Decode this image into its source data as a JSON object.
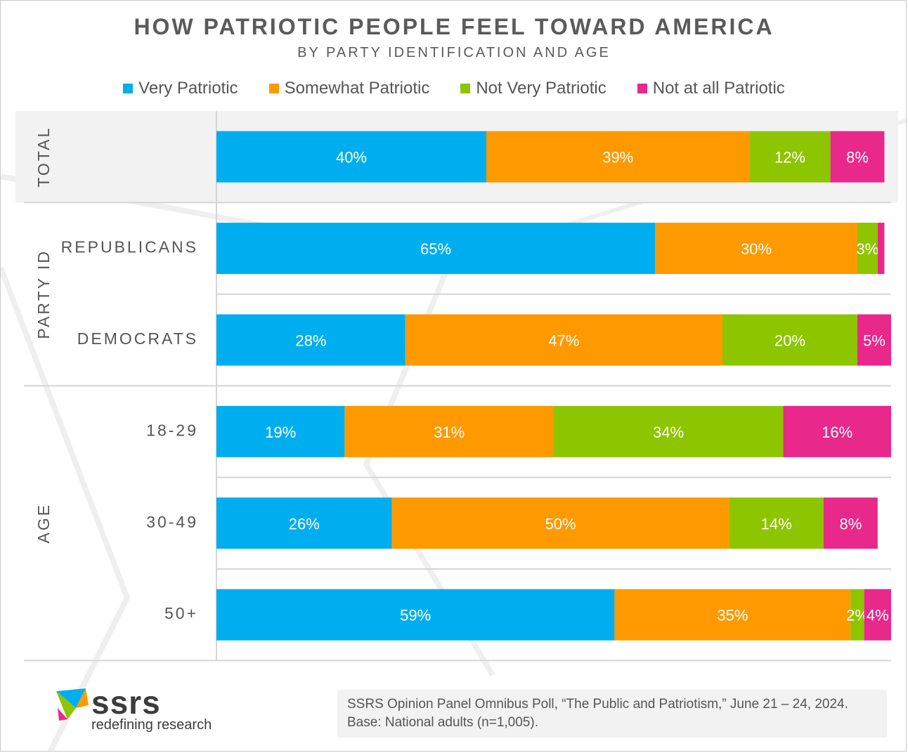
{
  "chart_data": {
    "type": "bar",
    "orientation": "horizontal",
    "stacked": true,
    "title": "HOW PATRIOTIC PEOPLE FEEL TOWARD AMERICA",
    "subtitle": "BY PARTY IDENTIFICATION AND AGE",
    "legend_placement": "top",
    "groups": [
      {
        "label": "TOTAL",
        "categories": [
          ""
        ]
      },
      {
        "label": "PARTY ID",
        "categories": [
          "REPUBLICANS",
          "DEMOCRATS"
        ]
      },
      {
        "label": "AGE",
        "categories": [
          "18-29",
          "30-49",
          "50+"
        ]
      }
    ],
    "categories": [
      "",
      "REPUBLICANS",
      "DEMOCRATS",
      "18-29",
      "30-49",
      "50+"
    ],
    "series": [
      {
        "name": "Very Patriotic",
        "color": "#00AEEF",
        "values": [
          40,
          65,
          28,
          19,
          26,
          59
        ],
        "labels": [
          "40%",
          "65%",
          "28%",
          "19%",
          "26%",
          "59%"
        ]
      },
      {
        "name": "Somewhat Patriotic",
        "color": "#FF9900",
        "values": [
          39,
          30,
          47,
          31,
          50,
          35
        ],
        "labels": [
          "39%",
          "30%",
          "47%",
          "31%",
          "50%",
          "35%"
        ]
      },
      {
        "name": "Not Very Patriotic",
        "color": "#8DC500",
        "values": [
          12,
          3,
          20,
          34,
          14,
          2
        ],
        "labels": [
          "12%",
          "3%",
          "20%",
          "34%",
          "14%",
          "2%"
        ]
      },
      {
        "name": "Not at all Patriotic",
        "color": "#E8288A",
        "values": [
          8,
          1,
          5,
          16,
          8,
          4
        ],
        "labels": [
          "8%",
          "",
          "5%",
          "16%",
          "8%",
          "4%"
        ]
      }
    ],
    "xlim": [
      0,
      100
    ],
    "grid": false
  },
  "footer": {
    "logo_name": "ssrs",
    "logo_tagline": "redefining research",
    "source_line1": "SSRS Opinion Panel Omnibus Poll, “The Public and Patriotism,” June 21 – 24, 2024.",
    "source_line2": "Base: National adults (n=1,005)."
  }
}
